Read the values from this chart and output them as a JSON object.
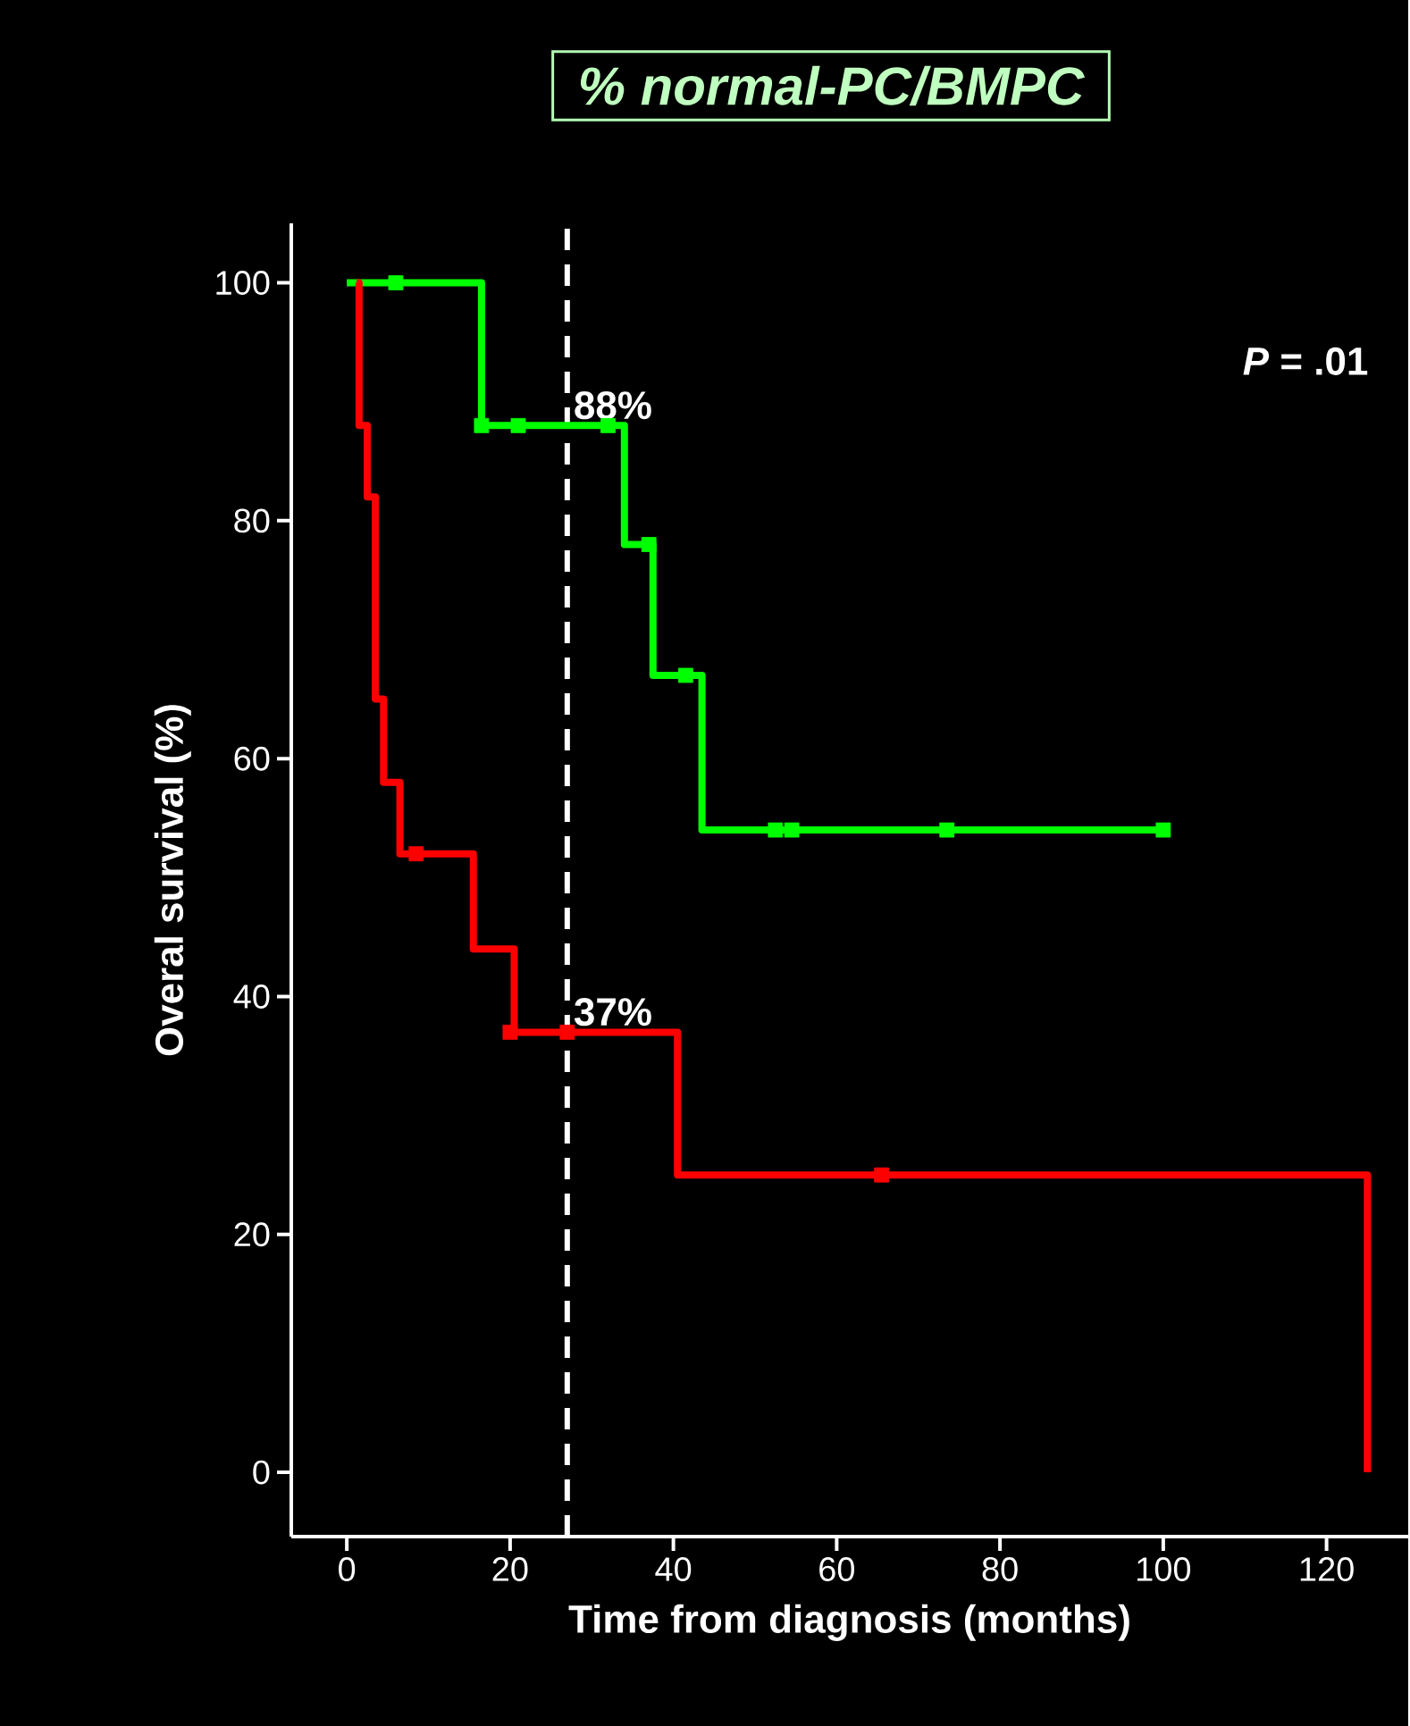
{
  "chart_data": {
    "type": "step",
    "title": "% normal-PC/BMPC",
    "xlabel": "Time from diagnosis (months)",
    "ylabel": "Overal survival (%)",
    "xlim": [
      -6.8,
      130
    ],
    "ylim": [
      -5.4,
      105
    ],
    "xticks": [
      0,
      20,
      40,
      60,
      80,
      100,
      120
    ],
    "yticks": [
      0,
      20,
      40,
      60,
      80,
      100
    ],
    "grid": false,
    "series": [
      {
        "color": "#00ff00",
        "x": [
          0,
          16.5,
          34,
          37.5,
          43.5,
          100
        ],
        "values": [
          100,
          88,
          78,
          67,
          54,
          54
        ]
      },
      {
        "color": "#ff0000",
        "x": [
          1.2,
          1.5,
          2.5,
          3.5,
          4.5,
          6.5,
          15.5,
          20.5,
          40.5,
          125
        ],
        "values": [
          100,
          88,
          82,
          65,
          58,
          52,
          44,
          37,
          25,
          0
        ]
      },
      {
        "type": "scatter",
        "marker": "square",
        "color": "#00ff00",
        "x": [
          6,
          16.5,
          21,
          32,
          37,
          41.5,
          52.5,
          54.5,
          73.5,
          100
        ],
        "values": [
          100,
          88,
          88,
          88,
          78,
          67,
          54,
          54,
          54,
          54
        ]
      },
      {
        "type": "scatter",
        "marker": "square",
        "color": "#ff0000",
        "x": [
          8.5,
          20,
          27,
          65.5
        ],
        "values": [
          52,
          37,
          37,
          25
        ]
      }
    ],
    "ref_lines": [
      {
        "axis": "x",
        "value": 27,
        "color": "#ffffff",
        "line_style": "dashed"
      }
    ],
    "annotations": [
      {
        "text": "88%",
        "x": 27,
        "y": 88
      },
      {
        "text": "37%",
        "x": 27,
        "y": 37
      },
      "*P* = .01"
    ]
  }
}
